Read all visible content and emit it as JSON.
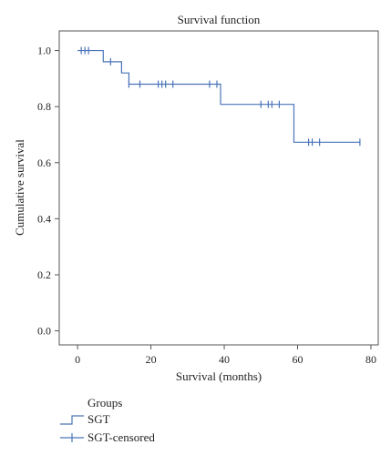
{
  "chart_data": {
    "type": "line",
    "title": "Survival function",
    "xlabel": "Survival (months)",
    "ylabel": "Cumulative survival",
    "xlim": [
      -5,
      82
    ],
    "ylim": [
      -0.05,
      1.07
    ],
    "xticks": [
      0,
      20,
      40,
      60,
      80
    ],
    "yticks": [
      0.0,
      0.2,
      0.4,
      0.6,
      0.8,
      1.0
    ],
    "xtick_labels": [
      "0",
      "20",
      "40",
      "60",
      "80"
    ],
    "ytick_labels": [
      "0.0",
      "0.2",
      "0.4",
      "0.6",
      "0.8",
      "1.0"
    ],
    "grid": false,
    "line_color": "#4a74b8",
    "series": [
      {
        "name": "SGT",
        "style": "step",
        "x": [
          0,
          7,
          12,
          14,
          39,
          59,
          77
        ],
        "y": [
          1.0,
          0.96,
          0.92,
          0.88,
          0.808,
          0.673,
          0.673
        ]
      },
      {
        "name": "SGT-censored",
        "style": "censor-ticks",
        "x": [
          1,
          2,
          3,
          9,
          14,
          17,
          22,
          23,
          24,
          26,
          36,
          38,
          50,
          52,
          53,
          55,
          63,
          64,
          66,
          77
        ],
        "y": [
          1.0,
          1.0,
          1.0,
          0.96,
          0.88,
          0.88,
          0.88,
          0.88,
          0.88,
          0.88,
          0.88,
          0.88,
          0.808,
          0.808,
          0.808,
          0.808,
          0.673,
          0.673,
          0.673,
          0.673
        ]
      }
    ],
    "legend": {
      "title": "Groups",
      "placement": "bottom-left",
      "entries": [
        "SGT",
        "SGT-censored"
      ]
    }
  }
}
